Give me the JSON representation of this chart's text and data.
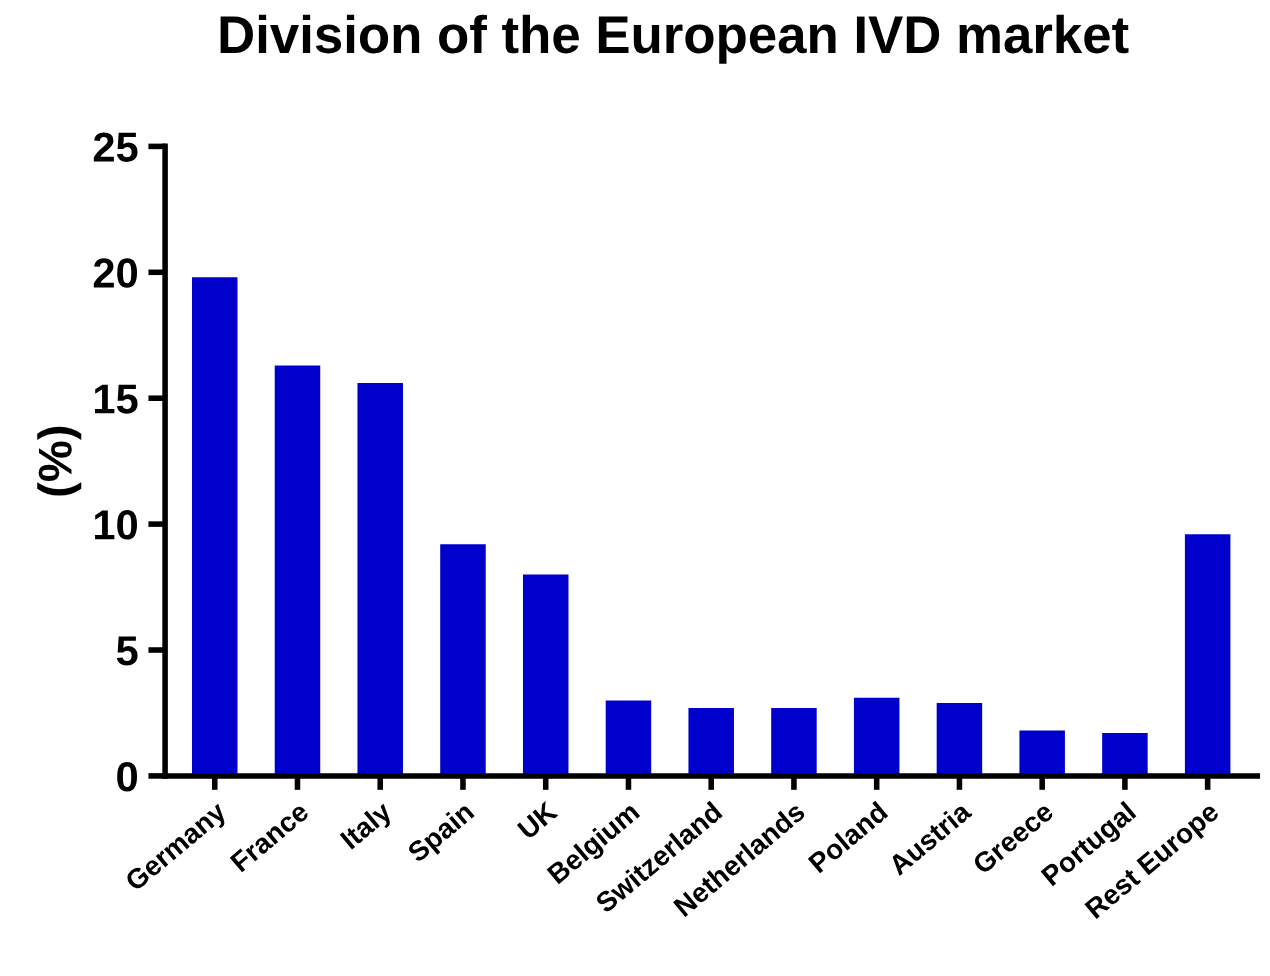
{
  "chart_data": {
    "type": "bar",
    "title": "Division of the European IVD market",
    "ylabel": "(%)",
    "categories": [
      "Germany",
      "France",
      "Italy",
      "Spain",
      "UK",
      "Belgium",
      "Switzerland",
      "Netherlands",
      "Poland",
      "Austria",
      "Greece",
      "Portugal",
      "Rest Europe"
    ],
    "values": [
      19.8,
      16.3,
      15.6,
      9.2,
      8.0,
      3.0,
      2.7,
      2.7,
      3.1,
      2.9,
      1.8,
      1.7,
      9.6
    ],
    "color": "#0000cc",
    "ylim": [
      0,
      25
    ],
    "yticks": [
      0,
      5,
      10,
      15,
      20,
      25
    ],
    "grid": false,
    "legend": false
  }
}
